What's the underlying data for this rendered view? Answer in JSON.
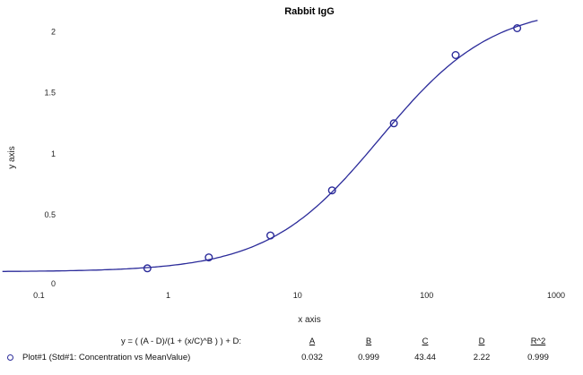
{
  "chart_data": {
    "type": "scatter",
    "title": "Rabbit IgG",
    "xlabel": "x axis",
    "ylabel": "y axis",
    "xscale": "log",
    "xlim": [
      0.05,
      1000
    ],
    "ylim": [
      0,
      2.1
    ],
    "x_ticks": [
      "0.1",
      "1",
      "10",
      "100",
      "1000"
    ],
    "y_ticks": [
      "0",
      "0.5",
      "1",
      "1.5",
      "2"
    ],
    "grid": false,
    "marker_color": "#2b2b9a",
    "curve_color": "#2b2b9a",
    "series": [
      {
        "name": "Plot#1 (Std#1: Concentration vs MeanValue)",
        "points": [
          {
            "x": 0.69,
            "y": 0.06
          },
          {
            "x": 2.06,
            "y": 0.15
          },
          {
            "x": 6.17,
            "y": 0.33
          },
          {
            "x": 18.5,
            "y": 0.7
          },
          {
            "x": 55.6,
            "y": 1.25
          },
          {
            "x": 167,
            "y": 1.81
          },
          {
            "x": 500,
            "y": 2.03
          }
        ]
      }
    ],
    "fit": {
      "equation": "y = ( (A - D)/(1 + (x/C)^B ) ) + D",
      "A": 0.032,
      "B": 0.999,
      "C": 43.44,
      "D": 2.22
    }
  },
  "legend": {
    "equation_label": "y = ( (A - D)/(1 + (x/C)^B ) ) + D:",
    "headers": [
      "A",
      "B",
      "C",
      "D",
      "R^2"
    ],
    "row_label": "Plot#1 (Std#1: Concentration vs MeanValue)",
    "values": [
      "0.032",
      "0.999",
      "43.44",
      "2.22",
      "0.999"
    ]
  }
}
